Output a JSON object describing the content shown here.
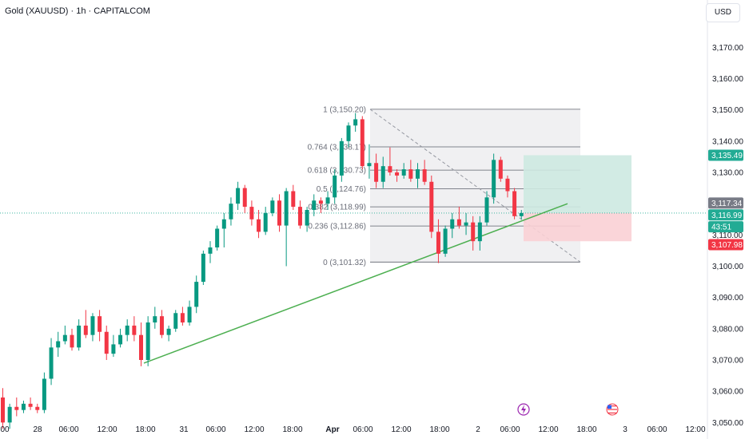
{
  "header": {
    "title": "Gold (XAUUSD) · 1h · CAPITALCOM",
    "currency": "USD"
  },
  "chart_data": {
    "type": "candlestick",
    "y_axis": {
      "min": 3046,
      "max": 3178,
      "ticks": [
        3050,
        3060,
        3070,
        3080,
        3090,
        3100,
        3110,
        3120,
        3130,
        3140,
        3150,
        3160,
        3170
      ]
    },
    "x_ticks": [
      "00",
      "28",
      "06:00",
      "12:00",
      "18:00",
      "31",
      "06:00",
      "12:00",
      "18:00",
      "Apr",
      "06:00",
      "12:00",
      "18:00",
      "2",
      "06:00",
      "12:00",
      "18:00",
      "3",
      "06:00",
      "12:00"
    ],
    "candles": [
      [
        3058,
        3061,
        3048,
        3050
      ],
      [
        3050,
        3056,
        3048,
        3055
      ],
      [
        3055,
        3058,
        3052,
        3054
      ],
      [
        3054,
        3057,
        3053,
        3056
      ],
      [
        3056,
        3058,
        3054,
        3055
      ],
      [
        3055,
        3056,
        3053,
        3054
      ],
      [
        3054,
        3066,
        3053,
        3064
      ],
      [
        3064,
        3077,
        3062,
        3074
      ],
      [
        3074,
        3079,
        3071,
        3076
      ],
      [
        3076,
        3081,
        3075,
        3078
      ],
      [
        3078,
        3080,
        3073,
        3074
      ],
      [
        3074,
        3083,
        3073,
        3081
      ],
      [
        3081,
        3086,
        3077,
        3078
      ],
      [
        3078,
        3085,
        3076,
        3084
      ],
      [
        3084,
        3086,
        3076,
        3079
      ],
      [
        3079,
        3081,
        3070,
        3072
      ],
      [
        3072,
        3078,
        3071,
        3075
      ],
      [
        3075,
        3080,
        3074,
        3078
      ],
      [
        3078,
        3083,
        3076,
        3081
      ],
      [
        3081,
        3084,
        3076,
        3078
      ],
      [
        3078,
        3082,
        3068,
        3070
      ],
      [
        3070,
        3084,
        3068,
        3082
      ],
      [
        3082,
        3087,
        3080,
        3084
      ],
      [
        3084,
        3086,
        3077,
        3078
      ],
      [
        3078,
        3081,
        3076,
        3080
      ],
      [
        3080,
        3086,
        3079,
        3085
      ],
      [
        3085,
        3087,
        3081,
        3082
      ],
      [
        3082,
        3089,
        3081,
        3087
      ],
      [
        3087,
        3097,
        3085,
        3095
      ],
      [
        3095,
        3105,
        3094,
        3104
      ],
      [
        3104,
        3108,
        3101,
        3106
      ],
      [
        3106,
        3113,
        3105,
        3112
      ],
      [
        3112,
        3117,
        3106,
        3115
      ],
      [
        3115,
        3122,
        3113,
        3120
      ],
      [
        3120,
        3127,
        3118,
        3125
      ],
      [
        3125,
        3126,
        3117,
        3119
      ],
      [
        3119,
        3121,
        3113,
        3115
      ],
      [
        3115,
        3118,
        3109,
        3111
      ],
      [
        3111,
        3119,
        3110,
        3117
      ],
      [
        3117,
        3122,
        3116,
        3121
      ],
      [
        3121,
        3123,
        3111,
        3113
      ],
      [
        3113,
        3125,
        3100,
        3124
      ],
      [
        3124,
        3126,
        3118,
        3119
      ],
      [
        3119,
        3121,
        3112,
        3113
      ],
      [
        3113,
        3119,
        3111,
        3118
      ],
      [
        3118,
        3123,
        3116,
        3121
      ],
      [
        3121,
        3122,
        3117,
        3120
      ],
      [
        3120,
        3124,
        3118,
        3122
      ],
      [
        3122,
        3131,
        3120,
        3129
      ],
      [
        3129,
        3141,
        3127,
        3140
      ],
      [
        3140,
        3146,
        3138,
        3145
      ],
      [
        3145,
        3149,
        3143,
        3147
      ],
      [
        3147,
        3148,
        3131,
        3132
      ],
      [
        3132,
        3139,
        3128,
        3133
      ],
      [
        3133,
        3136,
        3125,
        3127
      ],
      [
        3127,
        3135,
        3125,
        3132
      ],
      [
        3132,
        3138,
        3129,
        3130
      ],
      [
        3130,
        3131,
        3127,
        3129
      ],
      [
        3129,
        3133,
        3128,
        3131
      ],
      [
        3131,
        3134,
        3127,
        3128
      ],
      [
        3128,
        3133,
        3125,
        3131
      ],
      [
        3131,
        3134,
        3126,
        3127
      ],
      [
        3127,
        3129,
        3109,
        3111
      ],
      [
        3111,
        3115,
        3101,
        3104
      ],
      [
        3104,
        3113,
        3103,
        3112
      ],
      [
        3112,
        3117,
        3109,
        3115
      ],
      [
        3115,
        3119,
        3112,
        3113
      ],
      [
        3113,
        3117,
        3110,
        3114
      ],
      [
        3114,
        3116,
        3105,
        3108
      ],
      [
        3108,
        3116,
        3105,
        3114
      ],
      [
        3114,
        3124,
        3113,
        3122
      ],
      [
        3122,
        3136,
        3120,
        3134
      ],
      [
        3134,
        3135,
        3127,
        3128
      ],
      [
        3128,
        3129,
        3122,
        3124
      ],
      [
        3124,
        3125,
        3115,
        3116
      ],
      [
        3116,
        3118,
        3115,
        3117
      ]
    ],
    "fib_levels": [
      {
        "label": "1 (3,150.20)",
        "price": 3150.2
      },
      {
        "label": "0.764 (3,138.17)",
        "price": 3138.17
      },
      {
        "label": "0.618 (3,130.73)",
        "price": 3130.73
      },
      {
        "label": "0.5 (3,124.76)",
        "price": 3124.76
      },
      {
        "label": "0.382 (3,118.99)",
        "price": 3118.99
      },
      {
        "label": "0.236 (3,112.86)",
        "price": 3112.86
      },
      {
        "label": "0 (3,101.32)",
        "price": 3101.32
      }
    ],
    "price_badges": [
      {
        "label": "3,135.49",
        "color": "#22ab94"
      },
      {
        "label": "3,117.34",
        "color": "#787b86"
      },
      {
        "label": "3,116.99",
        "color": "#22ab94"
      },
      {
        "label": "43:51",
        "color": "#22ab94"
      },
      {
        "label": "3,107.98",
        "color": "#f23645"
      }
    ],
    "colors": {
      "up": "#089981",
      "down": "#f23645",
      "trendline": "#4caf50",
      "fib_fill": "#e9e9ec",
      "fib_line": "#5d606b",
      "target_fill": "#cde9e1",
      "stop_fill": "#f9d0d5"
    },
    "event_markers": [
      "lightning-icon",
      "us-flag-icon"
    ]
  }
}
